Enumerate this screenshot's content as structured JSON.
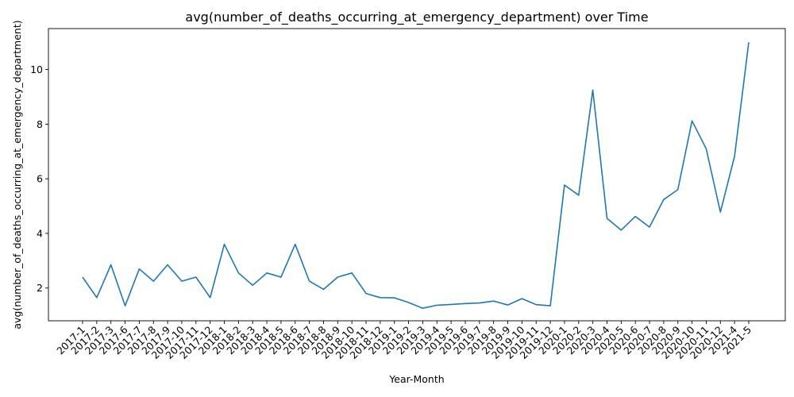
{
  "chart_data": {
    "type": "line",
    "title": "avg(number_of_deaths_occurring_at_emergency_department) over Time",
    "xlabel": "Year-Month",
    "ylabel": "avg(number_of_deaths_occurring_at_emergency_department)",
    "ylim": [
      0.8,
      11.5
    ],
    "yticks": [
      2,
      4,
      6,
      8,
      10
    ],
    "grid": false,
    "colors": {
      "series": "#1f77b4"
    },
    "categories": [
      "2017-1",
      "2017-2",
      "2017-3",
      "2017-6",
      "2017-7",
      "2017-8",
      "2017-9",
      "2017-10",
      "2017-11",
      "2017-12",
      "2018-1",
      "2018-2",
      "2018-3",
      "2018-4",
      "2018-5",
      "2018-6",
      "2018-7",
      "2018-8",
      "2018-9",
      "2018-10",
      "2018-11",
      "2018-12",
      "2019-1",
      "2019-2",
      "2019-3",
      "2019-4",
      "2019-5",
      "2019-6",
      "2019-7",
      "2019-8",
      "2019-9",
      "2019-10",
      "2019-11",
      "2019-12",
      "2020-1",
      "2020-2",
      "2020-3",
      "2020-4",
      "2020-5",
      "2020-6",
      "2020-7",
      "2020-8",
      "2020-9",
      "2020-10",
      "2020-11",
      "2020-12",
      "2021-4",
      "2021-5"
    ],
    "series": [
      {
        "values": [
          2.4,
          1.65,
          2.85,
          1.35,
          2.7,
          2.25,
          2.85,
          2.25,
          2.4,
          1.65,
          3.6,
          2.55,
          2.1,
          2.55,
          2.4,
          3.6,
          2.25,
          1.95,
          2.4,
          2.55,
          1.8,
          1.65,
          1.64,
          1.47,
          1.26,
          1.37,
          1.4,
          1.43,
          1.45,
          1.52,
          1.38,
          1.61,
          1.39,
          1.35,
          5.77,
          5.4,
          9.25,
          4.55,
          4.12,
          4.62,
          4.23,
          5.24,
          5.6,
          8.12,
          7.1,
          4.78,
          6.82,
          11.0
        ]
      }
    ]
  }
}
